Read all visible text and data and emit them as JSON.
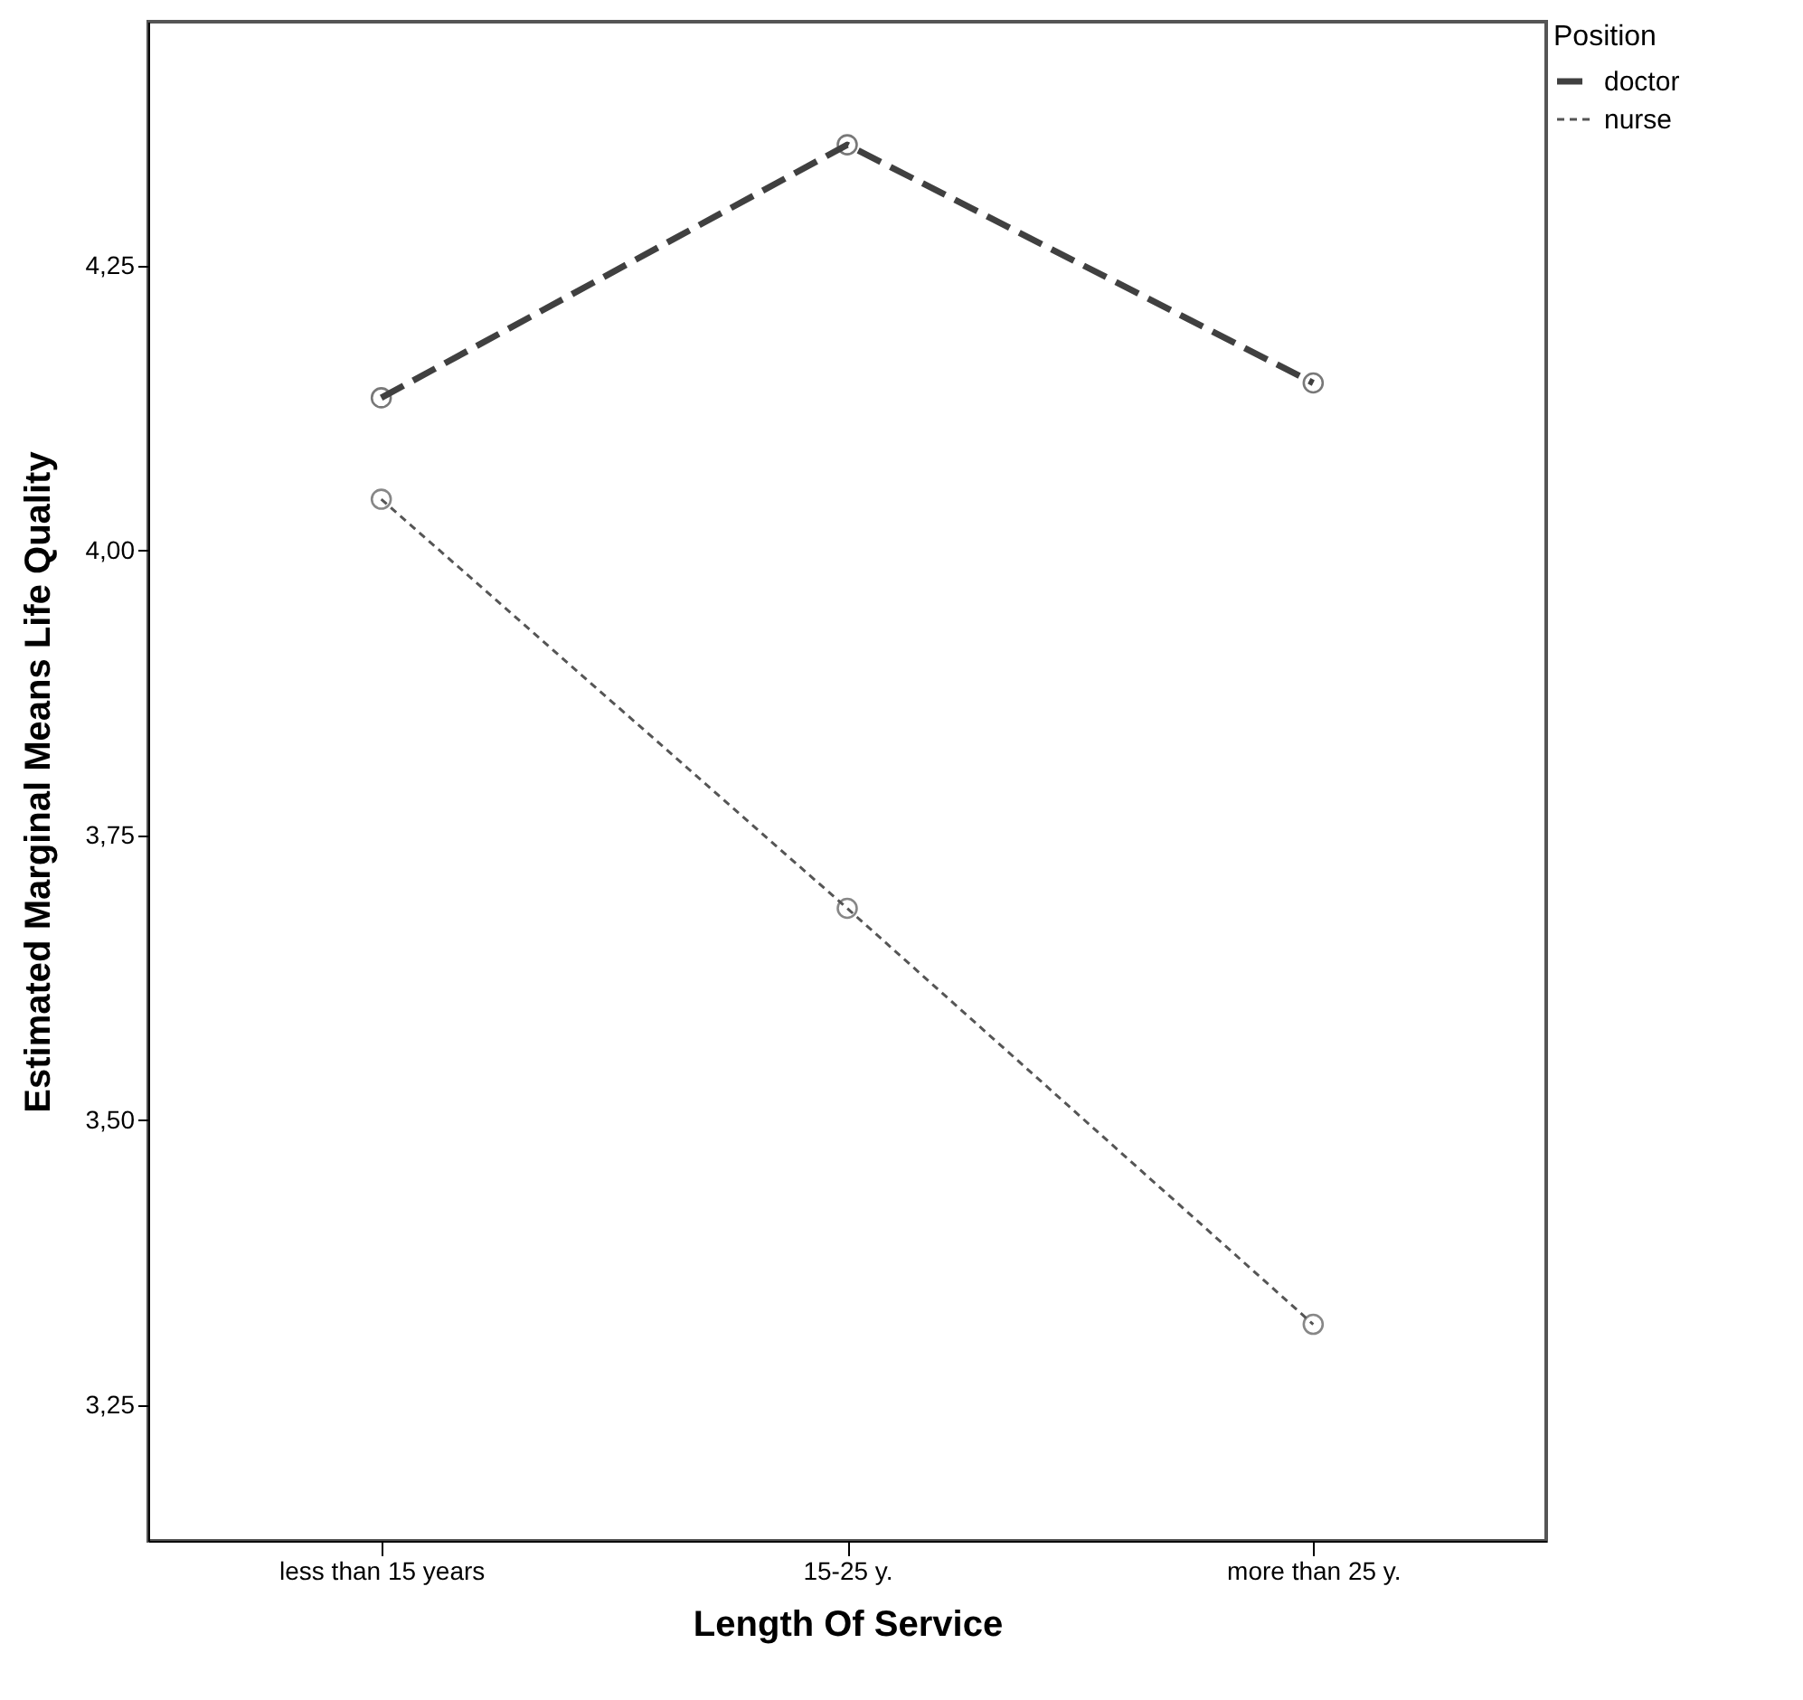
{
  "chart_data": {
    "type": "line",
    "xlabel": "Length Of Service",
    "ylabel": "Estimated Marginal Means Life Quality",
    "legend_title": "Position",
    "categories": [
      "less than 15 years",
      "15-25 y.",
      "more than 25 y."
    ],
    "series": [
      {
        "name": "doctor",
        "color": "#404040",
        "line_style": "dashed",
        "values": [
          4.134,
          4.356,
          4.147
        ]
      },
      {
        "name": "nurse",
        "color": "#555555",
        "line_style": "dotted",
        "values": [
          4.045,
          3.686,
          3.321
        ]
      }
    ],
    "ylim": [
      3.131,
      4.464
    ],
    "yticks": [
      {
        "value": 3.25,
        "label": "3,25"
      },
      {
        "value": 3.5,
        "label": "3,50"
      },
      {
        "value": 3.75,
        "label": "3,75"
      },
      {
        "value": 4,
        "label": "4,00"
      },
      {
        "value": 4.25,
        "label": "4,25"
      }
    ],
    "grid": false,
    "legend": "top right",
    "marker": "circle"
  }
}
